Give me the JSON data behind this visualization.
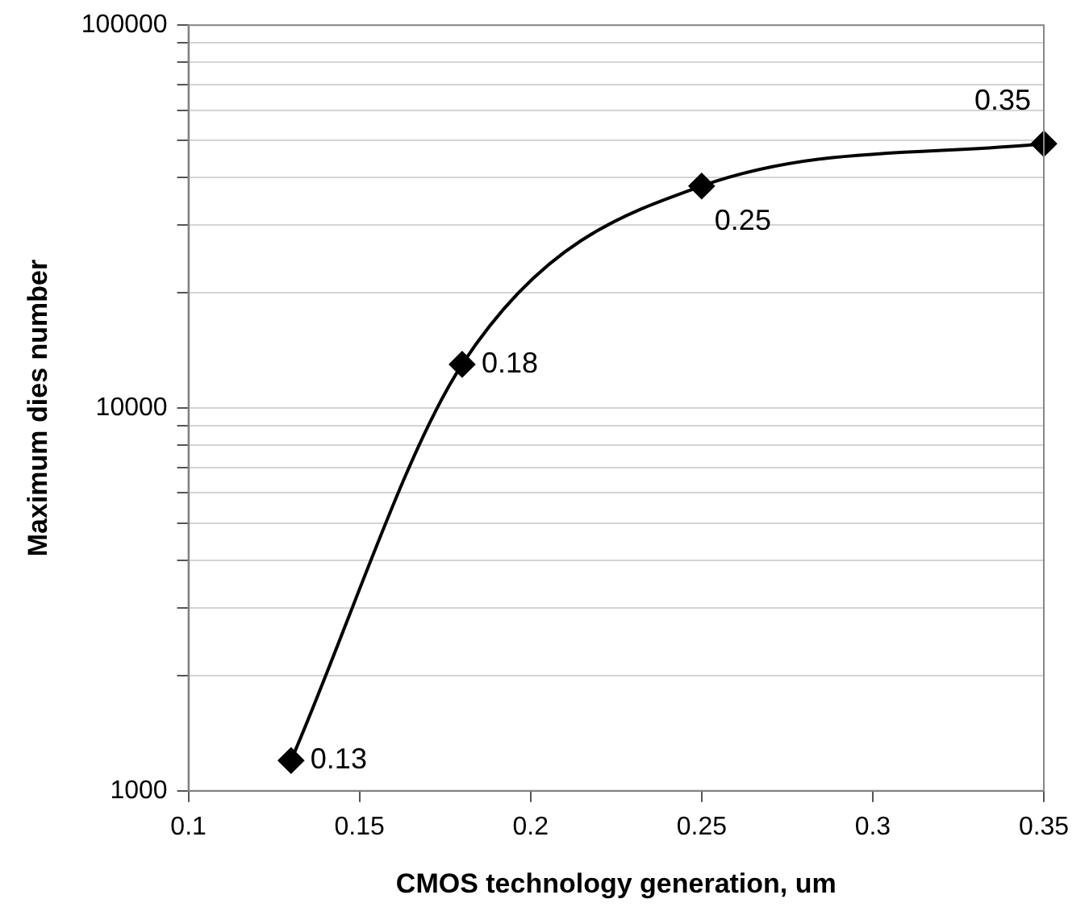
{
  "chart_data": {
    "type": "line",
    "xlabel": "CMOS technology generation, um",
    "ylabel": "Maximum dies number",
    "x": [
      0.13,
      0.18,
      0.25,
      0.35
    ],
    "series": [
      {
        "color": "#000000",
        "values": [
          1200,
          13000,
          38000,
          49000
        ]
      }
    ],
    "xlim": [
      0.1,
      0.35
    ],
    "xticks": [
      0.1,
      0.15,
      0.2,
      0.25,
      0.3,
      0.35
    ],
    "ylim": [
      1000,
      100000
    ],
    "yticks": [
      1000,
      {
        "value": 2000,
        "label": null
      },
      {
        "value": 3000,
        "label": null
      },
      {
        "value": 4000,
        "label": null
      },
      {
        "value": 5000,
        "label": null
      },
      {
        "value": 6000,
        "label": null
      },
      {
        "value": 7000,
        "label": null
      },
      {
        "value": 8000,
        "label": null
      },
      {
        "value": 9000,
        "label": null
      },
      10000,
      {
        "value": 20000,
        "label": null
      },
      {
        "value": 30000,
        "label": null
      },
      {
        "value": 40000,
        "label": null
      },
      {
        "value": 50000,
        "label": null
      },
      {
        "value": 60000,
        "label": null
      },
      {
        "value": 70000,
        "label": null
      },
      {
        "value": 80000,
        "label": null
      },
      {
        "value": 90000,
        "label": null
      },
      100000
    ],
    "log": "y",
    "grid": "y",
    "legend": false,
    "marker": "diamond",
    "line_style": "solid",
    "annotations": [
      {
        "text": "0.13",
        "x": 0.13,
        "y": 1200
      },
      {
        "text": "0.18",
        "x": 0.18,
        "y": 13000
      },
      {
        "text": "0.25",
        "x": 0.25,
        "y": 38000
      },
      {
        "text": "0.35",
        "x": 0.35,
        "y": 49000
      }
    ]
  }
}
